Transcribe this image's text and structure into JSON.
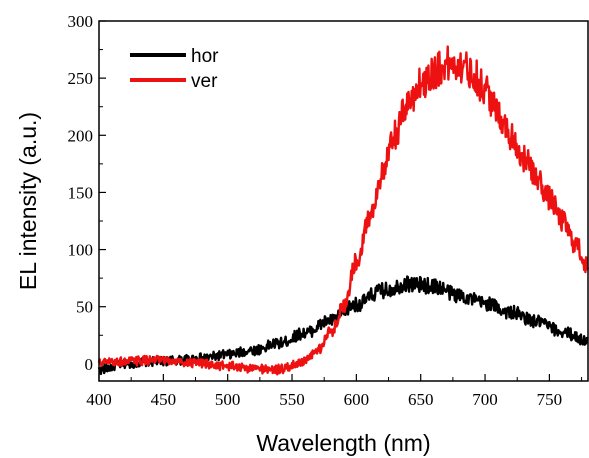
{
  "chart_data": {
    "type": "line",
    "xlabel": "Wavelength (nm)",
    "ylabel": "EL intensity (a.u.)",
    "xlim": [
      400,
      780
    ],
    "ylim": [
      -15,
      300
    ],
    "xticks": [
      400,
      450,
      500,
      550,
      600,
      650,
      700,
      750
    ],
    "yticks": [
      0,
      50,
      100,
      150,
      200,
      250,
      300
    ],
    "legend_position": "top-left",
    "series": [
      {
        "name": "hor",
        "color": "#000000",
        "x": [
          400,
          420,
          440,
          460,
          480,
          500,
          520,
          540,
          560,
          580,
          600,
          620,
          640,
          660,
          680,
          700,
          720,
          740,
          760,
          780
        ],
        "y": [
          -5,
          0,
          2,
          3,
          5,
          8,
          12,
          18,
          27,
          38,
          52,
          64,
          70,
          68,
          60,
          53,
          45,
          37,
          28,
          20
        ]
      },
      {
        "name": "ver",
        "color": "#ee1111",
        "x": [
          400,
          420,
          440,
          460,
          480,
          500,
          520,
          540,
          560,
          570,
          580,
          590,
          600,
          610,
          620,
          630,
          640,
          650,
          660,
          670,
          680,
          690,
          700,
          710,
          720,
          730,
          740,
          750,
          760,
          770,
          780
        ],
        "y": [
          1,
          2,
          3,
          2,
          0,
          -2,
          -4,
          -5,
          2,
          12,
          28,
          50,
          90,
          128,
          165,
          200,
          228,
          245,
          255,
          262,
          262,
          255,
          240,
          220,
          200,
          180,
          163,
          145,
          125,
          105,
          85
        ]
      }
    ]
  }
}
